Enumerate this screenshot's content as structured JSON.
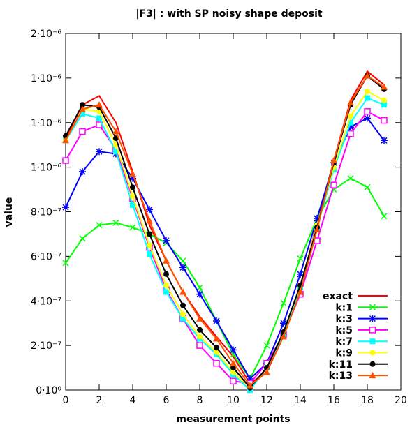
{
  "chart_data": {
    "type": "line",
    "title": "|F3| : with SP noisy shape deposit",
    "xlabel": "measurement points",
    "ylabel": "value",
    "xlim": [
      0,
      20
    ],
    "ylim": [
      0,
      1.6e-06
    ],
    "grid": false,
    "legend_position": "bottom-right",
    "x_ticks": [
      "0",
      "2",
      "4",
      "6",
      "8",
      "10",
      "12",
      "14",
      "16",
      "18",
      "20"
    ],
    "y_ticks": [
      "0·10⁰",
      "2·10⁻⁷",
      "4·10⁻⁷",
      "6·10⁻⁷",
      "8·10⁻⁷",
      "1·10⁻⁶",
      "1·10⁻⁶",
      "1·10⁻⁶",
      "2·10⁻⁶"
    ],
    "x": [
      0,
      1,
      2,
      3,
      4,
      5,
      6,
      7,
      8,
      9,
      10,
      11,
      12,
      13,
      14,
      15,
      16,
      17,
      18,
      19
    ],
    "series": [
      {
        "name": "exact",
        "color": "#ff0000",
        "marker": "none",
        "values": [
          1.13e-06,
          1.28e-06,
          1.32e-06,
          1.2e-06,
          9.8e-07,
          7.4e-07,
          5.8e-07,
          4.4e-07,
          3.3e-07,
          2.4e-07,
          1.5e-07,
          3e-08,
          8e-08,
          2.5e-07,
          4.6e-07,
          7.5e-07,
          1.03e-06,
          1.3e-06,
          1.43e-06,
          1.37e-06
        ]
      },
      {
        "name": "k:1",
        "color": "#00ff00",
        "marker": "cross",
        "values": [
          5.7e-07,
          6.8e-07,
          7.4e-07,
          7.5e-07,
          7.3e-07,
          7e-07,
          6.6e-07,
          5.8e-07,
          4.6e-07,
          3.1e-07,
          1.6e-07,
          5e-08,
          2e-07,
          3.9e-07,
          5.9e-07,
          7.7e-07,
          9e-07,
          9.5e-07,
          9.1e-07,
          7.8e-07
        ]
      },
      {
        "name": "k:3",
        "color": "#0000ff",
        "marker": "star",
        "values": [
          8.2e-07,
          9.8e-07,
          1.07e-06,
          1.06e-06,
          9.5e-07,
          8.1e-07,
          6.7e-07,
          5.5e-07,
          4.3e-07,
          3.1e-07,
          1.8e-07,
          5e-08,
          1.2e-07,
          3e-07,
          5.2e-07,
          7.7e-07,
          1.02e-06,
          1.18e-06,
          1.22e-06,
          1.12e-06
        ]
      },
      {
        "name": "k:5",
        "color": "#ff00ff",
        "marker": "square",
        "values": [
          1.03e-06,
          1.16e-06,
          1.19e-06,
          1.08e-06,
          8.6e-07,
          6.4e-07,
          4.5e-07,
          3.2e-07,
          2e-07,
          1.2e-07,
          4e-08,
          3e-08,
          1.2e-07,
          2.5e-07,
          4.3e-07,
          6.7e-07,
          9.2e-07,
          1.15e-06,
          1.25e-06,
          1.21e-06
        ]
      },
      {
        "name": "k:7",
        "color": "#00ffff",
        "marker": "filled-square",
        "values": [
          1.12e-06,
          1.24e-06,
          1.22e-06,
          1.07e-06,
          8.3e-07,
          6.1e-07,
          4.4e-07,
          3.2e-07,
          2.3e-07,
          1.6e-07,
          7e-08,
          0.0,
          1e-07,
          2.5e-07,
          4.6e-07,
          7.3e-07,
          9.9e-07,
          1.2e-06,
          1.31e-06,
          1.28e-06
        ]
      },
      {
        "name": "k:9",
        "color": "#ffff00",
        "marker": "filled-circle",
        "values": [
          1.12e-06,
          1.26e-06,
          1.25e-06,
          1.1e-06,
          8.7e-07,
          6.5e-07,
          4.7e-07,
          3.4e-07,
          2.4e-07,
          1.7e-07,
          8e-08,
          1e-08,
          1e-07,
          2.6e-07,
          4.7e-07,
          7.4e-07,
          1e-06,
          1.23e-06,
          1.34e-06,
          1.3e-06
        ]
      },
      {
        "name": "k:11",
        "color": "#000000",
        "marker": "filled-circle",
        "values": [
          1.14e-06,
          1.28e-06,
          1.27e-06,
          1.13e-06,
          9.1e-07,
          7e-07,
          5.2e-07,
          3.8e-07,
          2.7e-07,
          1.9e-07,
          1e-07,
          1e-08,
          1e-07,
          2.6e-07,
          4.7e-07,
          7.3e-07,
          1.02e-06,
          1.28e-06,
          1.41e-06,
          1.35e-06
        ]
      },
      {
        "name": "k:13",
        "color": "#ff5000",
        "marker": "filled-triangle",
        "values": [
          1.12e-06,
          1.26e-06,
          1.28e-06,
          1.16e-06,
          9.7e-07,
          7.6e-07,
          5.8e-07,
          4.4e-07,
          3.2e-07,
          2.3e-07,
          1.2e-07,
          2e-08,
          8e-08,
          2.4e-07,
          4.4e-07,
          7.2e-07,
          1.03e-06,
          1.29e-06,
          1.41e-06,
          1.36e-06
        ]
      }
    ]
  }
}
